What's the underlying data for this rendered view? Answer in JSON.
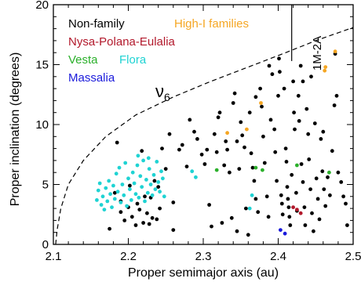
{
  "chart_data": {
    "type": "scatter",
    "xlabel": "Proper semimajor axis (au)",
    "ylabel": "Proper inclination (degrees)",
    "xlim": [
      2.1,
      2.5
    ],
    "ylim": [
      0,
      20
    ],
    "x_ticks": [
      "2.1",
      "2.2",
      "2.3",
      "2.4",
      "2.5"
    ],
    "y_ticks": [
      "0",
      "5",
      "10",
      "15",
      "20"
    ],
    "grid": false,
    "legend_position": "top-left",
    "annotations": {
      "resonance_label": "1M-2A",
      "resonance_x": 2.418,
      "resonance_y_range": [
        15.3,
        20
      ],
      "nu6_label": "ν",
      "nu6_sub": "6",
      "nu6_curve": [
        {
          "x": 2.103,
          "y": 0
        },
        {
          "x": 2.105,
          "y": 1.2
        },
        {
          "x": 2.11,
          "y": 3.0
        },
        {
          "x": 2.12,
          "y": 5.0
        },
        {
          "x": 2.14,
          "y": 7.0
        },
        {
          "x": 2.17,
          "y": 9.0
        },
        {
          "x": 2.21,
          "y": 10.8
        },
        {
          "x": 2.26,
          "y": 12.3
        },
        {
          "x": 2.31,
          "y": 13.6
        },
        {
          "x": 2.36,
          "y": 14.8
        },
        {
          "x": 2.41,
          "y": 16.0
        },
        {
          "x": 2.45,
          "y": 17.0
        },
        {
          "x": 2.5,
          "y": 18.1
        }
      ]
    },
    "series": [
      {
        "name": "Non-family",
        "color": "#000000",
        "points": [
          [
            2.175,
            1.3
          ],
          [
            2.182,
            4.3
          ],
          [
            2.185,
            8.5
          ],
          [
            2.19,
            3.6
          ],
          [
            2.19,
            2.7
          ],
          [
            2.195,
            2.0
          ],
          [
            2.2,
            3.1
          ],
          [
            2.202,
            4.9
          ],
          [
            2.205,
            2.3
          ],
          [
            2.21,
            1.6
          ],
          [
            2.212,
            3.4
          ],
          [
            2.215,
            2.9
          ],
          [
            2.218,
            7.8
          ],
          [
            2.22,
            1.8
          ],
          [
            2.222,
            4.0
          ],
          [
            2.225,
            2.6
          ],
          [
            2.228,
            1.7
          ],
          [
            2.23,
            3.9
          ],
          [
            2.232,
            2.2
          ],
          [
            2.235,
            5.3
          ],
          [
            2.238,
            2.1
          ],
          [
            2.24,
            4.8
          ],
          [
            2.242,
            3.0
          ],
          [
            2.245,
            8.0
          ],
          [
            2.25,
            6.3
          ],
          [
            2.255,
            9.2
          ],
          [
            2.26,
            3.5
          ],
          [
            2.26,
            1.2
          ],
          [
            2.268,
            7.9
          ],
          [
            2.272,
            8.3
          ],
          [
            2.278,
            6.5
          ],
          [
            2.282,
            10.4
          ],
          [
            2.288,
            9.4
          ],
          [
            2.292,
            8.8
          ],
          [
            2.298,
            7.5
          ],
          [
            2.302,
            6.7
          ],
          [
            2.305,
            7.9
          ],
          [
            2.308,
            3.3
          ],
          [
            2.311,
            1.5
          ],
          [
            2.315,
            9.2
          ],
          [
            2.318,
            7.7
          ],
          [
            2.32,
            10.6
          ],
          [
            2.322,
            11.0
          ],
          [
            2.325,
            1.8
          ],
          [
            2.328,
            6.6
          ],
          [
            2.33,
            8.6
          ],
          [
            2.332,
            7.9
          ],
          [
            2.335,
            6.0
          ],
          [
            2.338,
            2.2
          ],
          [
            2.34,
            11.8
          ],
          [
            2.342,
            12.6
          ],
          [
            2.345,
            8.6
          ],
          [
            2.348,
            6.3
          ],
          [
            2.35,
            10.2
          ],
          [
            2.352,
            9.1
          ],
          [
            2.355,
            8.1
          ],
          [
            2.357,
            3.0
          ],
          [
            2.36,
            0.8
          ],
          [
            2.362,
            11.0
          ],
          [
            2.364,
            7.6
          ],
          [
            2.366,
            6.4
          ],
          [
            2.368,
            5.3
          ],
          [
            2.37,
            12.3
          ],
          [
            2.373,
            2.7
          ],
          [
            2.376,
            13.0
          ],
          [
            2.378,
            11.5
          ],
          [
            2.38,
            9.0
          ],
          [
            2.382,
            6.8
          ],
          [
            2.385,
            4.0
          ],
          [
            2.387,
            2.3
          ],
          [
            2.388,
            14.9
          ],
          [
            2.39,
            10.4
          ],
          [
            2.392,
            14.2
          ],
          [
            2.395,
            9.6
          ],
          [
            2.396,
            7.7
          ],
          [
            2.398,
            5.3
          ],
          [
            2.4,
            12.4
          ],
          [
            2.401,
            15.5
          ],
          [
            2.402,
            14.4
          ],
          [
            2.404,
            4.1
          ],
          [
            2.405,
            3.4
          ],
          [
            2.406,
            2.5
          ],
          [
            2.408,
            13.0
          ],
          [
            2.41,
            8.0
          ],
          [
            2.411,
            6.9
          ],
          [
            2.412,
            4.8
          ],
          [
            2.413,
            3.8
          ],
          [
            2.414,
            3.1
          ],
          [
            2.415,
            2.3
          ],
          [
            2.416,
            1.6
          ],
          [
            2.418,
            5.8
          ],
          [
            2.42,
            13.6
          ],
          [
            2.421,
            11.0
          ],
          [
            2.422,
            9.6
          ],
          [
            2.424,
            4.3
          ],
          [
            2.425,
            2.8
          ],
          [
            2.427,
            12.4
          ],
          [
            2.428,
            10.3
          ],
          [
            2.43,
            14.9
          ],
          [
            2.431,
            6.7
          ],
          [
            2.433,
            5.2
          ],
          [
            2.435,
            3.1
          ],
          [
            2.436,
            1.6
          ],
          [
            2.438,
            11.3
          ],
          [
            2.44,
            9.2
          ],
          [
            2.441,
            7.1
          ],
          [
            2.443,
            4.6
          ],
          [
            2.445,
            2.6
          ],
          [
            2.447,
            1.1
          ],
          [
            2.449,
            10.1
          ],
          [
            2.451,
            5.5
          ],
          [
            2.453,
            3.8
          ],
          [
            2.455,
            2.1
          ],
          [
            2.457,
            8.8
          ],
          [
            2.459,
            6.1
          ],
          [
            2.461,
            4.6
          ],
          [
            2.463,
            3.2
          ],
          [
            2.466,
            5.6
          ],
          [
            2.469,
            4.1
          ],
          [
            2.472,
            7.8
          ],
          [
            2.475,
            11.6
          ],
          [
            2.476,
            15.9
          ],
          [
            2.478,
            12.4
          ],
          [
            2.48,
            6.0
          ],
          [
            2.484,
            5.2
          ],
          [
            2.487,
            4.0
          ],
          [
            2.49,
            3.4
          ],
          [
            2.492,
            1.6
          ],
          [
            2.37,
            3.8
          ],
          [
            2.345,
            1.1
          ],
          [
            2.433,
            13.6
          ],
          [
            2.46,
            9.4
          ],
          [
            2.444,
            14.0
          ]
        ]
      },
      {
        "name": "High-I families",
        "color": "#f5a623",
        "points": [
          [
            2.332,
            9.3
          ],
          [
            2.358,
            9.6
          ],
          [
            2.377,
            11.8
          ],
          [
            2.462,
            14.5
          ],
          [
            2.463,
            14.8
          ],
          [
            2.476,
            16.1
          ]
        ]
      },
      {
        "name": "Nysa-Polana-Eulalia",
        "color": "#b2182b",
        "points": [
          [
            2.42,
            3.1
          ],
          [
            2.425,
            2.9
          ],
          [
            2.43,
            2.6
          ]
        ]
      },
      {
        "name": "Vesta",
        "color": "#2bb02b",
        "points": [
          [
            2.318,
            6.2
          ],
          [
            2.37,
            6.4
          ],
          [
            2.379,
            6.2
          ],
          [
            2.425,
            6.6
          ],
          [
            2.468,
            6.0
          ]
        ]
      },
      {
        "name": "Flora",
        "color": "#1fd3d3",
        "points": [
          [
            2.158,
            3.7
          ],
          [
            2.16,
            4.5
          ],
          [
            2.162,
            5.1
          ],
          [
            2.164,
            3.3
          ],
          [
            2.166,
            4.0
          ],
          [
            2.168,
            2.9
          ],
          [
            2.17,
            4.7
          ],
          [
            2.172,
            3.6
          ],
          [
            2.174,
            5.3
          ],
          [
            2.176,
            4.2
          ],
          [
            2.178,
            3.1
          ],
          [
            2.18,
            4.9
          ],
          [
            2.182,
            3.8
          ],
          [
            2.184,
            5.9
          ],
          [
            2.186,
            4.4
          ],
          [
            2.188,
            6.4
          ],
          [
            2.19,
            3.5
          ],
          [
            2.192,
            5.0
          ],
          [
            2.194,
            4.1
          ],
          [
            2.196,
            6.8
          ],
          [
            2.198,
            3.2
          ],
          [
            2.2,
            5.5
          ],
          [
            2.202,
            4.6
          ],
          [
            2.204,
            3.7
          ],
          [
            2.206,
            6.0
          ],
          [
            2.208,
            5.1
          ],
          [
            2.21,
            4.2
          ],
          [
            2.212,
            6.6
          ],
          [
            2.214,
            3.9
          ],
          [
            2.216,
            5.7
          ],
          [
            2.218,
            4.8
          ],
          [
            2.22,
            7.0
          ],
          [
            2.222,
            3.6
          ],
          [
            2.224,
            5.4
          ],
          [
            2.226,
            4.3
          ],
          [
            2.228,
            6.3
          ],
          [
            2.23,
            5.0
          ],
          [
            2.232,
            4.1
          ],
          [
            2.234,
            5.8
          ],
          [
            2.236,
            4.6
          ],
          [
            2.238,
            6.9
          ],
          [
            2.24,
            5.2
          ],
          [
            2.242,
            4.4
          ],
          [
            2.244,
            6.1
          ],
          [
            2.246,
            5.5
          ],
          [
            2.248,
            4.0
          ],
          [
            2.213,
            7.4
          ],
          [
            2.227,
            7.2
          ],
          [
            2.285,
            6.1
          ],
          [
            2.29,
            5.6
          ],
          [
            2.365,
            4.1
          ],
          [
            2.362,
            3.0
          ]
        ]
      },
      {
        "name": "Massalia",
        "color": "#1a1adb",
        "points": [
          [
            2.403,
            1.2
          ],
          [
            2.409,
            0.9
          ]
        ]
      }
    ]
  }
}
